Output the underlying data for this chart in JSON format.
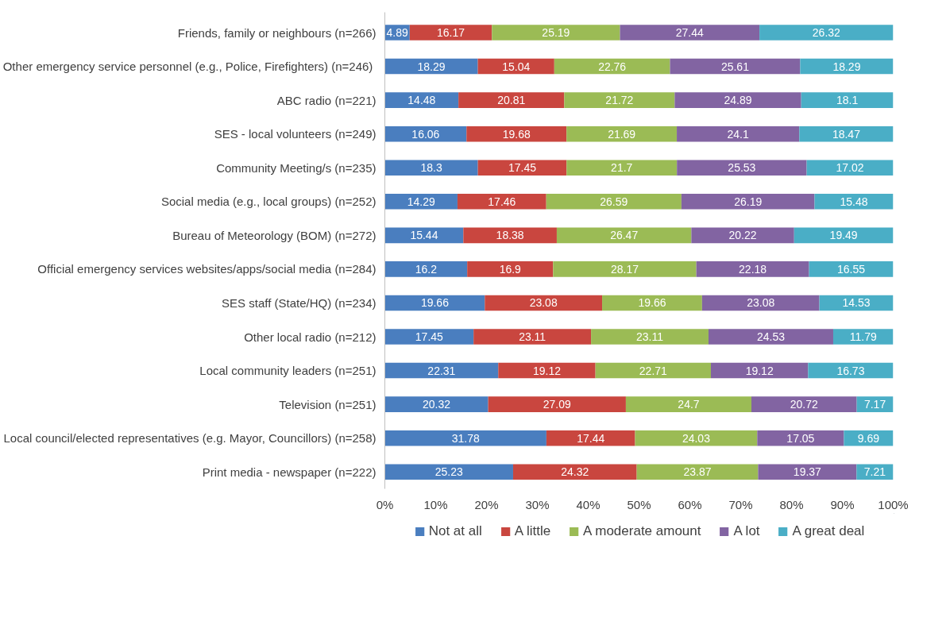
{
  "chart_data": {
    "type": "bar",
    "orientation": "horizontal",
    "stacked": true,
    "data_labels": true,
    "grid": false,
    "legend": "bottom",
    "categories": [
      "Friends, family or neighbours (n=266)",
      "Other emergency service personnel  (e.g., Police, Firefighters) (n=246)",
      "ABC radio (n=221)",
      "SES - local volunteers (n=249)",
      "Community Meeting/s (n=235)",
      "Social media (e.g., local groups) (n=252)",
      "Bureau of Meteorology (BOM) (n=272)",
      "Official emergency services websites/apps/social media (n=284)",
      "SES staff (State/HQ) (n=234)",
      "Other local radio (n=212)",
      "Local community leaders (n=251)",
      "Television (n=251)",
      "Local council/elected representatives (e.g. Mayor, Councillors) (n=258)",
      "Print media - newspaper (n=222)"
    ],
    "xlim": [
      0,
      100
    ],
    "xticks": [
      {
        "value": 0,
        "label": "0%"
      },
      {
        "value": 10,
        "label": "10%"
      },
      {
        "value": 20,
        "label": "20%"
      },
      {
        "value": 30,
        "label": "30%"
      },
      {
        "value": 40,
        "label": "40%"
      },
      {
        "value": 50,
        "label": "50%"
      },
      {
        "value": 60,
        "label": "60%"
      },
      {
        "value": 70,
        "label": "70%"
      },
      {
        "value": 80,
        "label": "80%"
      },
      {
        "value": 90,
        "label": "90%"
      },
      {
        "value": 100,
        "label": "100%"
      }
    ],
    "series": [
      {
        "name": "Not at all",
        "color": "#4a7ebf",
        "values": [
          4.89,
          18.29,
          14.48,
          16.06,
          18.3,
          14.29,
          15.44,
          16.2,
          19.66,
          17.45,
          22.31,
          20.32,
          31.78,
          25.23
        ]
      },
      {
        "name": "A little",
        "color": "#c9463f",
        "values": [
          16.17,
          15.04,
          20.81,
          19.68,
          17.45,
          17.46,
          18.38,
          16.9,
          23.08,
          23.11,
          19.12,
          27.09,
          17.44,
          24.32
        ]
      },
      {
        "name": "A moderate amount",
        "color": "#9bbb55",
        "values": [
          25.19,
          22.76,
          21.72,
          21.69,
          21.7,
          26.59,
          26.47,
          28.17,
          19.66,
          23.11,
          22.71,
          24.7,
          24.03,
          23.87
        ]
      },
      {
        "name": "A lot",
        "color": "#8264a2",
        "values": [
          27.44,
          25.61,
          24.89,
          24.1,
          25.53,
          26.19,
          20.22,
          22.18,
          23.08,
          24.53,
          19.12,
          20.72,
          17.05,
          19.37
        ]
      },
      {
        "name": "A great deal",
        "color": "#4aaec6",
        "values": [
          26.32,
          18.29,
          18.1,
          18.47,
          17.02,
          15.48,
          19.49,
          16.55,
          14.53,
          11.79,
          16.73,
          7.17,
          9.69,
          7.21
        ]
      }
    ]
  }
}
